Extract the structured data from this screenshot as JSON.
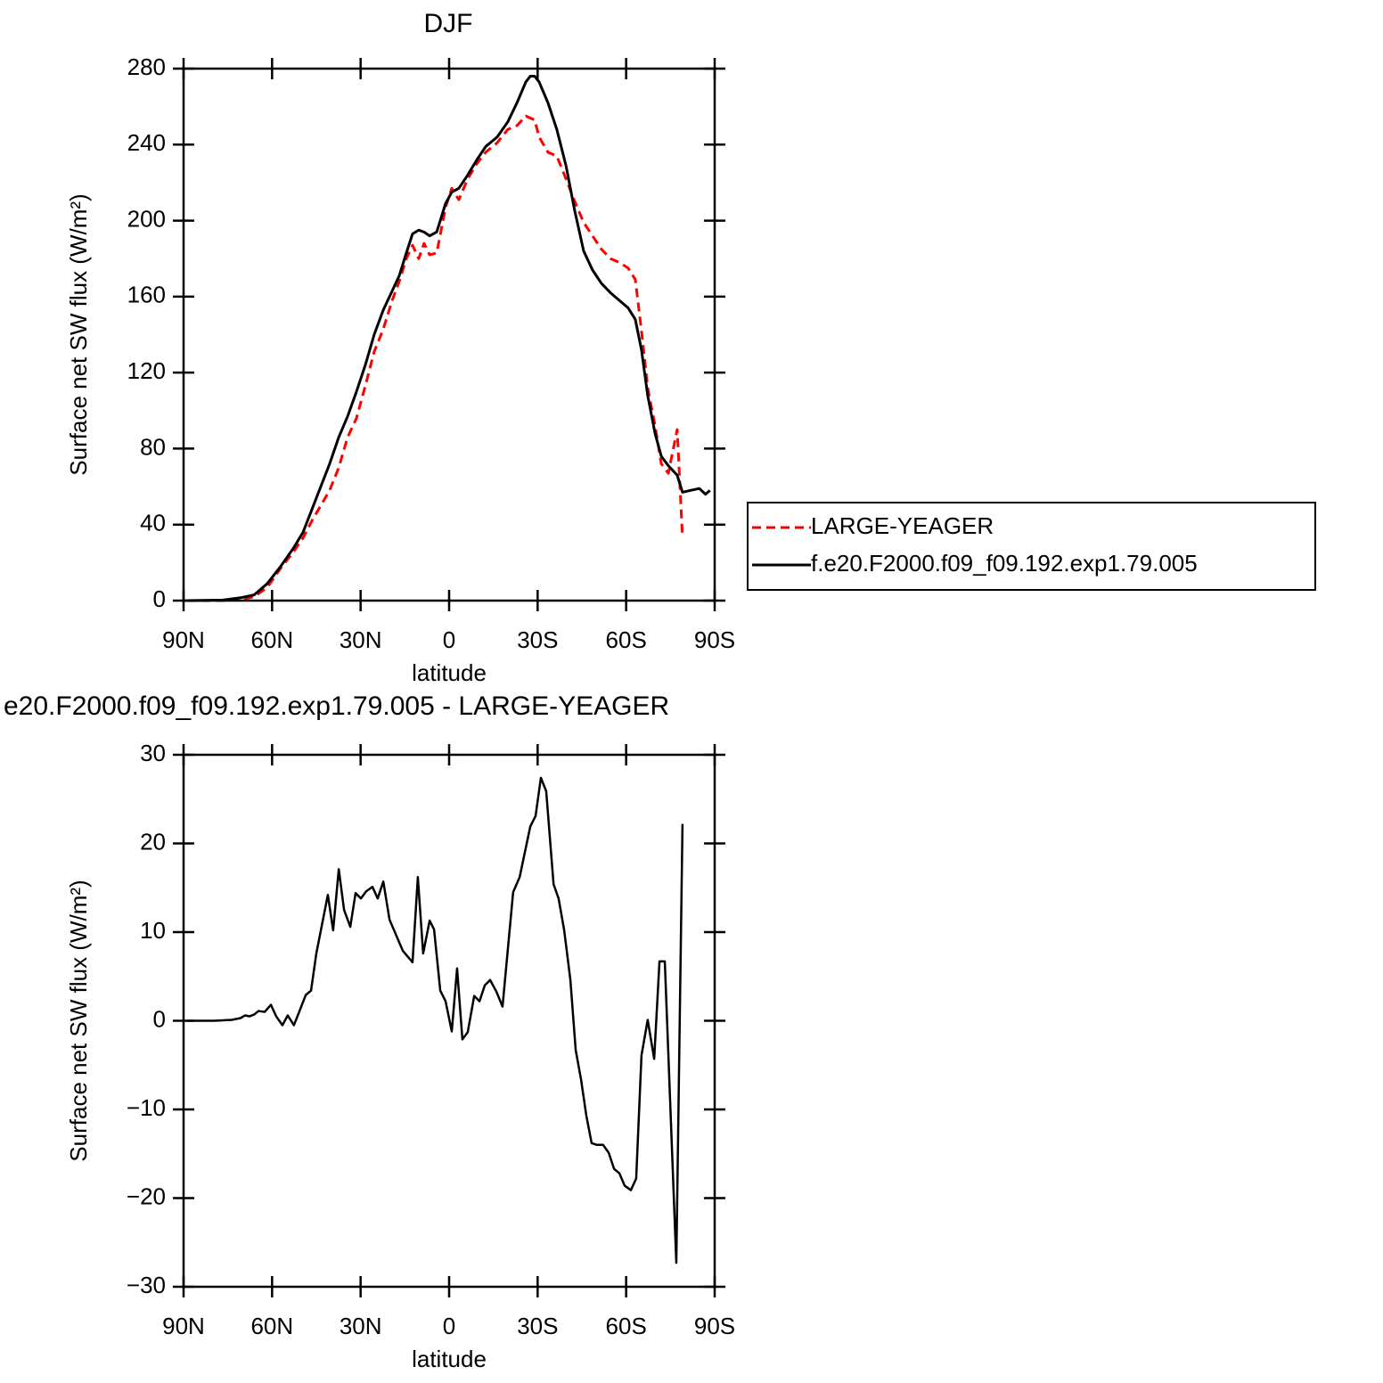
{
  "chart_data": [
    {
      "type": "line",
      "title": "DJF",
      "xlabel": "latitude",
      "ylabel": "Surface net SW flux (W/m²)",
      "xlim": [
        90,
        -90
      ],
      "xticks": [
        {
          "value": 90,
          "label": "90N"
        },
        {
          "value": 60,
          "label": "60N"
        },
        {
          "value": 30,
          "label": "30N"
        },
        0,
        {
          "value": -30,
          "label": "30S"
        },
        {
          "value": -60,
          "label": "60S"
        },
        {
          "value": -90,
          "label": "90S"
        }
      ],
      "ylim": [
        0,
        280
      ],
      "yticks": [
        0,
        40,
        80,
        120,
        160,
        200,
        240,
        280
      ],
      "legend": "right",
      "x": [
        88.8,
        76.7,
        70.7,
        66.1,
        61.6,
        57.1,
        52.6,
        49.5,
        46.5,
        43.5,
        40.5,
        37.4,
        34.4,
        31.4,
        28.4,
        25.4,
        22.3,
        19.3,
        16.9,
        14.5,
        12.4,
        10.3,
        8.5,
        6.6,
        4.2,
        1.2,
        -0.9,
        -3.3,
        -6.3,
        -9.4,
        -12.4,
        -16.3,
        -19.9,
        -23.0,
        -26.0,
        -27.5,
        -29.0,
        -30.5,
        -33.5,
        -36.5,
        -39.6,
        -42.6,
        -45.6,
        -48.6,
        -51.6,
        -54.7,
        -57.7,
        -60.7,
        -63.1,
        -65.2,
        -67.3,
        -69.8,
        -71.9,
        -74.3,
        -77.3,
        -79.1,
        -81.8,
        -84.8,
        -86.9,
        -88.4
      ],
      "series": [
        {
          "name": "LARGE-YEAGER",
          "color": "#ff0000",
          "style": "dashed",
          "values": [
            0,
            0,
            0.5,
            2,
            7,
            17,
            26,
            33,
            42,
            50,
            58,
            70,
            86,
            96,
            113,
            131,
            143,
            158,
            168,
            180,
            187,
            180,
            188,
            182,
            183,
            207,
            217,
            211,
            222,
            230,
            236,
            241,
            248,
            250,
            255,
            254,
            253,
            244,
            236,
            234,
            222,
            210,
            199,
            192,
            185,
            180,
            178,
            175,
            169,
            142,
            112,
            92,
            72,
            67,
            90,
            33,
            null,
            null,
            null,
            null
          ]
        },
        {
          "name": "f.e20.F2000.f09_f09.192.exp1.79.005",
          "color": "#000000",
          "style": "solid",
          "values": [
            0,
            0.3,
            1.5,
            3,
            9,
            18,
            28,
            36,
            48,
            60,
            72,
            86,
            97,
            110,
            124,
            140,
            153,
            163,
            171,
            183,
            193,
            195,
            194,
            192,
            194,
            209,
            215,
            217,
            224,
            232,
            239,
            244,
            252,
            262,
            273,
            276,
            276,
            273,
            262,
            248,
            229,
            205,
            184,
            174,
            167,
            162,
            158,
            154,
            148,
            132,
            108,
            88,
            76,
            71,
            66,
            57,
            58,
            59,
            56,
            58
          ]
        }
      ]
    },
    {
      "type": "line",
      "title": "e20.F2000.f09_f09.192.exp1.79.005 - LARGE-YEAGER",
      "xlabel": "latitude",
      "ylabel": "Surface net SW flux (W/m²)",
      "xlim": [
        90,
        -90
      ],
      "xticks": [
        {
          "value": 90,
          "label": "90N"
        },
        {
          "value": 60,
          "label": "60N"
        },
        {
          "value": 30,
          "label": "30N"
        },
        0,
        {
          "value": -30,
          "label": "30S"
        },
        {
          "value": -60,
          "label": "60S"
        },
        {
          "value": -90,
          "label": "90S"
        }
      ],
      "ylim": [
        -30,
        30
      ],
      "yticks": [
        {
          "value": -30,
          "label": "−30"
        },
        {
          "value": -20,
          "label": "−20"
        },
        {
          "value": -10,
          "label": "−10"
        },
        0,
        10,
        20,
        30
      ],
      "x": [
        88.8,
        79.7,
        73.7,
        70.7,
        69.2,
        67.7,
        66.1,
        64.6,
        62.5,
        60.4,
        58.6,
        56.5,
        54.7,
        52.6,
        50.7,
        48.6,
        46.8,
        45.0,
        41.1,
        39.3,
        37.4,
        35.6,
        33.5,
        31.7,
        29.9,
        28.1,
        26.0,
        24.2,
        22.3,
        20.2,
        15.7,
        12.4,
        10.6,
        8.8,
        6.6,
        5.1,
        3.0,
        1.2,
        -0.9,
        -2.7,
        -4.5,
        -6.3,
        -8.5,
        -10.3,
        -12.1,
        -13.9,
        -16.0,
        -18.1,
        -21.7,
        -23.9,
        -27.5,
        -29.3,
        -31.1,
        -32.9,
        -35.4,
        -37.1,
        -39.0,
        -41.1,
        -42.9,
        -44.7,
        -46.5,
        -48.3,
        -50.1,
        -52.2,
        -54.1,
        -55.9,
        -57.7,
        -59.5,
        -61.6,
        -63.4,
        -65.2,
        -67.3,
        -69.5,
        -71.3,
        -73.1,
        -77.0,
        -79.1
      ],
      "series": [
        {
          "color": "#000000",
          "style": "solid",
          "values": [
            0,
            0,
            0.1,
            0.3,
            0.6,
            0.5,
            0.7,
            1.1,
            1.0,
            1.8,
            0.5,
            -0.5,
            0.6,
            -0.5,
            1.1,
            2.9,
            3.4,
            7.6,
            14.2,
            10.2,
            17.1,
            12.5,
            10.6,
            14.4,
            13.8,
            14.6,
            15.1,
            13.8,
            15.7,
            11.4,
            7.9,
            6.6,
            16.2,
            7.6,
            11.3,
            10.3,
            3.4,
            2.2,
            -1.2,
            5.9,
            -2.1,
            -1.3,
            2.8,
            2.2,
            4.0,
            4.6,
            3.3,
            1.6,
            14.5,
            16.2,
            21.9,
            23.1,
            27.4,
            25.9,
            15.4,
            13.8,
            10.2,
            4.6,
            -3.3,
            -6.6,
            -10.7,
            -13.8,
            -14.0,
            -14.0,
            -14.9,
            -16.7,
            -17.2,
            -18.6,
            -19.1,
            -17.8,
            -3.9,
            0.1,
            -4.3,
            6.7,
            6.7,
            -27.3,
            22.2
          ]
        }
      ]
    }
  ]
}
